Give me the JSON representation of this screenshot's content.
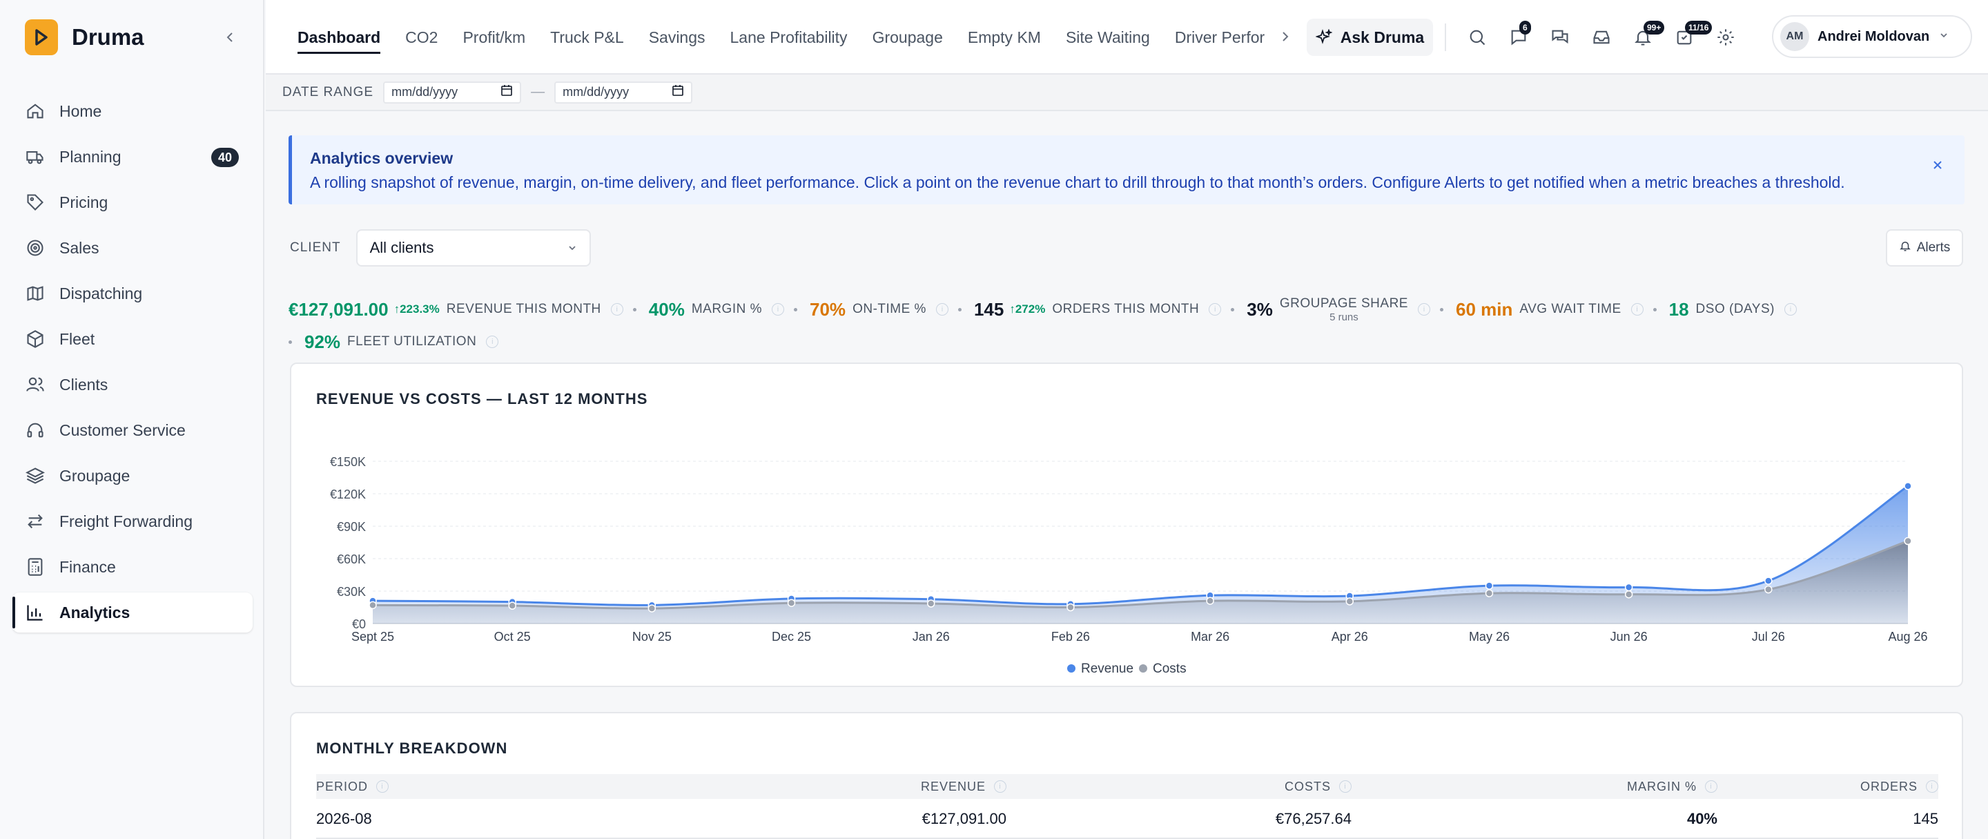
{
  "app": {
    "name": "Druma",
    "collapse_icon": "chevron-left-icon"
  },
  "sidebar": {
    "items": [
      {
        "label": "Home",
        "icon": "home-icon"
      },
      {
        "label": "Planning",
        "icon": "truck-icon",
        "badge": "40"
      },
      {
        "label": "Pricing",
        "icon": "tag-icon"
      },
      {
        "label": "Sales",
        "icon": "target-icon"
      },
      {
        "label": "Dispatching",
        "icon": "map-icon"
      },
      {
        "label": "Fleet",
        "icon": "box-icon"
      },
      {
        "label": "Clients",
        "icon": "users-icon"
      },
      {
        "label": "Customer Service",
        "icon": "headset-icon"
      },
      {
        "label": "Groupage",
        "icon": "layers-icon"
      },
      {
        "label": "Freight Forwarding",
        "icon": "arrows-icon"
      },
      {
        "label": "Finance",
        "icon": "calculator-icon"
      },
      {
        "label": "Analytics",
        "icon": "bar-chart-icon",
        "active": true
      }
    ]
  },
  "topnav": {
    "tabs": [
      "Dashboard",
      "CO2",
      "Profit/km",
      "Truck P&L",
      "Savings",
      "Lane Profitability",
      "Groupage",
      "Empty KM",
      "Site Waiting",
      "Driver Perfor"
    ],
    "active_tab": "Dashboard",
    "ask_label": "Ask Druma",
    "badges": {
      "chat": "6",
      "notifications": "99+",
      "tasks": "11/16"
    },
    "user": {
      "initials": "AM",
      "name": "Andrei Moldovan"
    }
  },
  "date_range": {
    "label": "DATE RANGE",
    "from_placeholder": "mm/dd/yyyy",
    "to_placeholder": "mm/dd/yyyy",
    "separator": "—"
  },
  "banner": {
    "title": "Analytics overview",
    "text": "A rolling snapshot of revenue, margin, on-time delivery, and fleet performance. Click a point on the revenue chart to drill through to that month’s orders. Configure Alerts to get notified when a metric breaches a threshold."
  },
  "filters": {
    "client_label": "CLIENT",
    "client_value": "All clients",
    "alerts_label": "Alerts"
  },
  "kpis": {
    "revenue": {
      "value": "€127,091.00",
      "delta": "↑223.3%",
      "label": "REVENUE THIS MONTH"
    },
    "margin": {
      "value": "40%",
      "label": "MARGIN %"
    },
    "ontime": {
      "value": "70%",
      "label": "ON-TIME %"
    },
    "orders": {
      "value": "145",
      "delta": "↑272%",
      "label": "ORDERS THIS MONTH"
    },
    "groupage": {
      "value": "3%",
      "label": "GROUPAGE SHARE",
      "sub": "5 runs"
    },
    "wait": {
      "value": "60 min",
      "label": "AVG WAIT TIME"
    },
    "dso": {
      "value": "18",
      "label": "DSO (DAYS)"
    },
    "fleet": {
      "value": "92%",
      "label": "FLEET UTILIZATION"
    }
  },
  "chart_title": "REVENUE VS COSTS — LAST 12 MONTHS",
  "chart_data": {
    "type": "area",
    "categories": [
      "Sept 25",
      "Oct 25",
      "Nov 25",
      "Dec 25",
      "Jan 26",
      "Feb 26",
      "Mar 26",
      "Apr 26",
      "May 26",
      "Jun 26",
      "Jul 26",
      "Aug 26"
    ],
    "series": [
      {
        "name": "Revenue",
        "color": "#4a86e8",
        "values": [
          21000,
          20000,
          17000,
          23000,
          22500,
          18000,
          26000,
          25500,
          35000,
          33500,
          39500,
          127091
        ]
      },
      {
        "name": "Costs",
        "color": "#9ca3af",
        "values": [
          17000,
          16500,
          14000,
          19000,
          18500,
          15000,
          21000,
          20500,
          28000,
          27000,
          31500,
          76257.64
        ]
      }
    ],
    "y_ticks": [
      "€0",
      "€30K",
      "€60K",
      "€90K",
      "€120K",
      "€150K"
    ],
    "ylim": [
      0,
      150000
    ],
    "grid": true,
    "legend": "bottom-center"
  },
  "breakdown": {
    "title": "MONTHLY BREAKDOWN",
    "columns": [
      "PERIOD",
      "REVENUE",
      "COSTS",
      "MARGIN %",
      "ORDERS"
    ],
    "rows": [
      [
        "2026-08",
        "€127,091.00",
        "€76,257.64",
        "40%",
        "145"
      ]
    ]
  },
  "colors": {
    "brand": "#f5a623",
    "accent": "#4a86e8",
    "positive": "#059669",
    "warning": "#d97706"
  }
}
